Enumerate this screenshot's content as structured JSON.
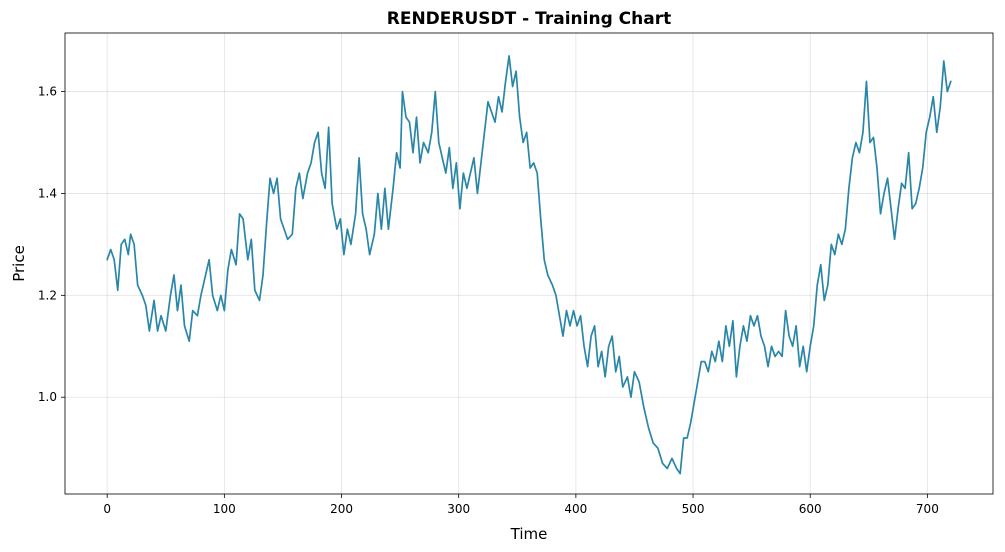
{
  "chart_data": {
    "type": "line",
    "title": "RENDERUSDT - Training Chart",
    "xlabel": "Time",
    "ylabel": "Price",
    "xlim": [
      -36,
      756
    ],
    "ylim": [
      0.81,
      1.715
    ],
    "xticks": [
      0,
      100,
      200,
      300,
      400,
      500,
      600,
      700
    ],
    "yticks": [
      1.0,
      1.2,
      1.4,
      1.6
    ],
    "ytick_labels": [
      "1.0",
      "1.2",
      "1.4",
      "1.6"
    ],
    "grid": true,
    "line_color": "#2a86a8",
    "keypoints": [
      [
        0,
        1.27
      ],
      [
        3,
        1.29
      ],
      [
        6,
        1.27
      ],
      [
        9,
        1.21
      ],
      [
        12,
        1.3
      ],
      [
        15,
        1.31
      ],
      [
        18,
        1.28
      ],
      [
        20,
        1.32
      ],
      [
        23,
        1.3
      ],
      [
        26,
        1.22
      ],
      [
        30,
        1.2
      ],
      [
        33,
        1.18
      ],
      [
        36,
        1.13
      ],
      [
        40,
        1.19
      ],
      [
        43,
        1.13
      ],
      [
        46,
        1.16
      ],
      [
        50,
        1.13
      ],
      [
        54,
        1.2
      ],
      [
        57,
        1.24
      ],
      [
        60,
        1.17
      ],
      [
        63,
        1.22
      ],
      [
        66,
        1.14
      ],
      [
        70,
        1.11
      ],
      [
        73,
        1.17
      ],
      [
        77,
        1.16
      ],
      [
        80,
        1.2
      ],
      [
        84,
        1.24
      ],
      [
        87,
        1.27
      ],
      [
        90,
        1.2
      ],
      [
        94,
        1.17
      ],
      [
        97,
        1.2
      ],
      [
        100,
        1.17
      ],
      [
        103,
        1.25
      ],
      [
        106,
        1.29
      ],
      [
        110,
        1.26
      ],
      [
        113,
        1.36
      ],
      [
        116,
        1.35
      ],
      [
        120,
        1.27
      ],
      [
        123,
        1.31
      ],
      [
        126,
        1.21
      ],
      [
        130,
        1.19
      ],
      [
        133,
        1.24
      ],
      [
        136,
        1.34
      ],
      [
        139,
        1.43
      ],
      [
        142,
        1.4
      ],
      [
        145,
        1.43
      ],
      [
        148,
        1.35
      ],
      [
        151,
        1.33
      ],
      [
        154,
        1.31
      ],
      [
        158,
        1.32
      ],
      [
        161,
        1.41
      ],
      [
        164,
        1.44
      ],
      [
        167,
        1.39
      ],
      [
        171,
        1.44
      ],
      [
        174,
        1.46
      ],
      [
        177,
        1.5
      ],
      [
        180,
        1.52
      ],
      [
        183,
        1.44
      ],
      [
        186,
        1.41
      ],
      [
        189,
        1.53
      ],
      [
        192,
        1.38
      ],
      [
        196,
        1.33
      ],
      [
        199,
        1.35
      ],
      [
        202,
        1.28
      ],
      [
        205,
        1.33
      ],
      [
        208,
        1.3
      ],
      [
        212,
        1.36
      ],
      [
        215,
        1.47
      ],
      [
        218,
        1.36
      ],
      [
        221,
        1.33
      ],
      [
        224,
        1.28
      ],
      [
        228,
        1.32
      ],
      [
        231,
        1.4
      ],
      [
        234,
        1.33
      ],
      [
        237,
        1.41
      ],
      [
        240,
        1.33
      ],
      [
        244,
        1.41
      ],
      [
        247,
        1.48
      ],
      [
        250,
        1.45
      ],
      [
        252,
        1.6
      ],
      [
        255,
        1.55
      ],
      [
        258,
        1.54
      ],
      [
        261,
        1.48
      ],
      [
        264,
        1.55
      ],
      [
        267,
        1.46
      ],
      [
        270,
        1.5
      ],
      [
        274,
        1.48
      ],
      [
        277,
        1.52
      ],
      [
        280,
        1.6
      ],
      [
        283,
        1.5
      ],
      [
        286,
        1.47
      ],
      [
        289,
        1.44
      ],
      [
        292,
        1.49
      ],
      [
        295,
        1.41
      ],
      [
        298,
        1.46
      ],
      [
        301,
        1.37
      ],
      [
        304,
        1.44
      ],
      [
        307,
        1.41
      ],
      [
        310,
        1.44
      ],
      [
        313,
        1.47
      ],
      [
        316,
        1.4
      ],
      [
        319,
        1.46
      ],
      [
        322,
        1.52
      ],
      [
        325,
        1.58
      ],
      [
        328,
        1.56
      ],
      [
        331,
        1.54
      ],
      [
        334,
        1.59
      ],
      [
        337,
        1.56
      ],
      [
        340,
        1.62
      ],
      [
        343,
        1.67
      ],
      [
        346,
        1.61
      ],
      [
        349,
        1.64
      ],
      [
        352,
        1.55
      ],
      [
        355,
        1.5
      ],
      [
        358,
        1.52
      ],
      [
        361,
        1.45
      ],
      [
        364,
        1.46
      ],
      [
        367,
        1.44
      ],
      [
        370,
        1.35
      ],
      [
        373,
        1.27
      ],
      [
        376,
        1.24
      ],
      [
        380,
        1.22
      ],
      [
        383,
        1.2
      ],
      [
        386,
        1.16
      ],
      [
        389,
        1.12
      ],
      [
        392,
        1.17
      ],
      [
        395,
        1.14
      ],
      [
        398,
        1.17
      ],
      [
        401,
        1.14
      ],
      [
        404,
        1.16
      ],
      [
        407,
        1.1
      ],
      [
        410,
        1.06
      ],
      [
        413,
        1.12
      ],
      [
        416,
        1.14
      ],
      [
        419,
        1.06
      ],
      [
        422,
        1.09
      ],
      [
        425,
        1.04
      ],
      [
        428,
        1.1
      ],
      [
        431,
        1.12
      ],
      [
        434,
        1.05
      ],
      [
        437,
        1.08
      ],
      [
        440,
        1.02
      ],
      [
        444,
        1.04
      ],
      [
        447,
        1.0
      ],
      [
        450,
        1.05
      ],
      [
        454,
        1.03
      ],
      [
        458,
        0.98
      ],
      [
        462,
        0.94
      ],
      [
        466,
        0.91
      ],
      [
        470,
        0.9
      ],
      [
        474,
        0.87
      ],
      [
        478,
        0.86
      ],
      [
        482,
        0.88
      ],
      [
        486,
        0.86
      ],
      [
        489,
        0.85
      ],
      [
        492,
        0.92
      ],
      [
        495,
        0.92
      ],
      [
        498,
        0.95
      ],
      [
        501,
        0.99
      ],
      [
        504,
        1.03
      ],
      [
        507,
        1.07
      ],
      [
        510,
        1.07
      ],
      [
        513,
        1.05
      ],
      [
        516,
        1.09
      ],
      [
        519,
        1.07
      ],
      [
        522,
        1.11
      ],
      [
        525,
        1.07
      ],
      [
        528,
        1.14
      ],
      [
        531,
        1.1
      ],
      [
        534,
        1.15
      ],
      [
        537,
        1.04
      ],
      [
        540,
        1.1
      ],
      [
        543,
        1.14
      ],
      [
        546,
        1.11
      ],
      [
        549,
        1.16
      ],
      [
        552,
        1.14
      ],
      [
        555,
        1.16
      ],
      [
        558,
        1.12
      ],
      [
        561,
        1.1
      ],
      [
        564,
        1.06
      ],
      [
        567,
        1.1
      ],
      [
        570,
        1.08
      ],
      [
        573,
        1.09
      ],
      [
        576,
        1.08
      ],
      [
        579,
        1.17
      ],
      [
        582,
        1.12
      ],
      [
        585,
        1.1
      ],
      [
        588,
        1.14
      ],
      [
        591,
        1.06
      ],
      [
        594,
        1.1
      ],
      [
        597,
        1.05
      ],
      [
        600,
        1.1
      ],
      [
        603,
        1.14
      ],
      [
        606,
        1.22
      ],
      [
        609,
        1.26
      ],
      [
        612,
        1.19
      ],
      [
        615,
        1.22
      ],
      [
        618,
        1.3
      ],
      [
        621,
        1.28
      ],
      [
        624,
        1.32
      ],
      [
        627,
        1.3
      ],
      [
        630,
        1.33
      ],
      [
        633,
        1.41
      ],
      [
        636,
        1.47
      ],
      [
        639,
        1.5
      ],
      [
        642,
        1.48
      ],
      [
        645,
        1.52
      ],
      [
        648,
        1.62
      ],
      [
        651,
        1.5
      ],
      [
        654,
        1.51
      ],
      [
        657,
        1.45
      ],
      [
        660,
        1.36
      ],
      [
        663,
        1.4
      ],
      [
        666,
        1.43
      ],
      [
        669,
        1.37
      ],
      [
        672,
        1.31
      ],
      [
        675,
        1.37
      ],
      [
        678,
        1.42
      ],
      [
        681,
        1.41
      ],
      [
        684,
        1.48
      ],
      [
        687,
        1.37
      ],
      [
        690,
        1.38
      ],
      [
        693,
        1.41
      ],
      [
        696,
        1.45
      ],
      [
        699,
        1.52
      ],
      [
        702,
        1.55
      ],
      [
        705,
        1.59
      ],
      [
        708,
        1.52
      ],
      [
        711,
        1.57
      ],
      [
        714,
        1.66
      ],
      [
        717,
        1.6
      ],
      [
        720,
        1.62
      ]
    ]
  }
}
